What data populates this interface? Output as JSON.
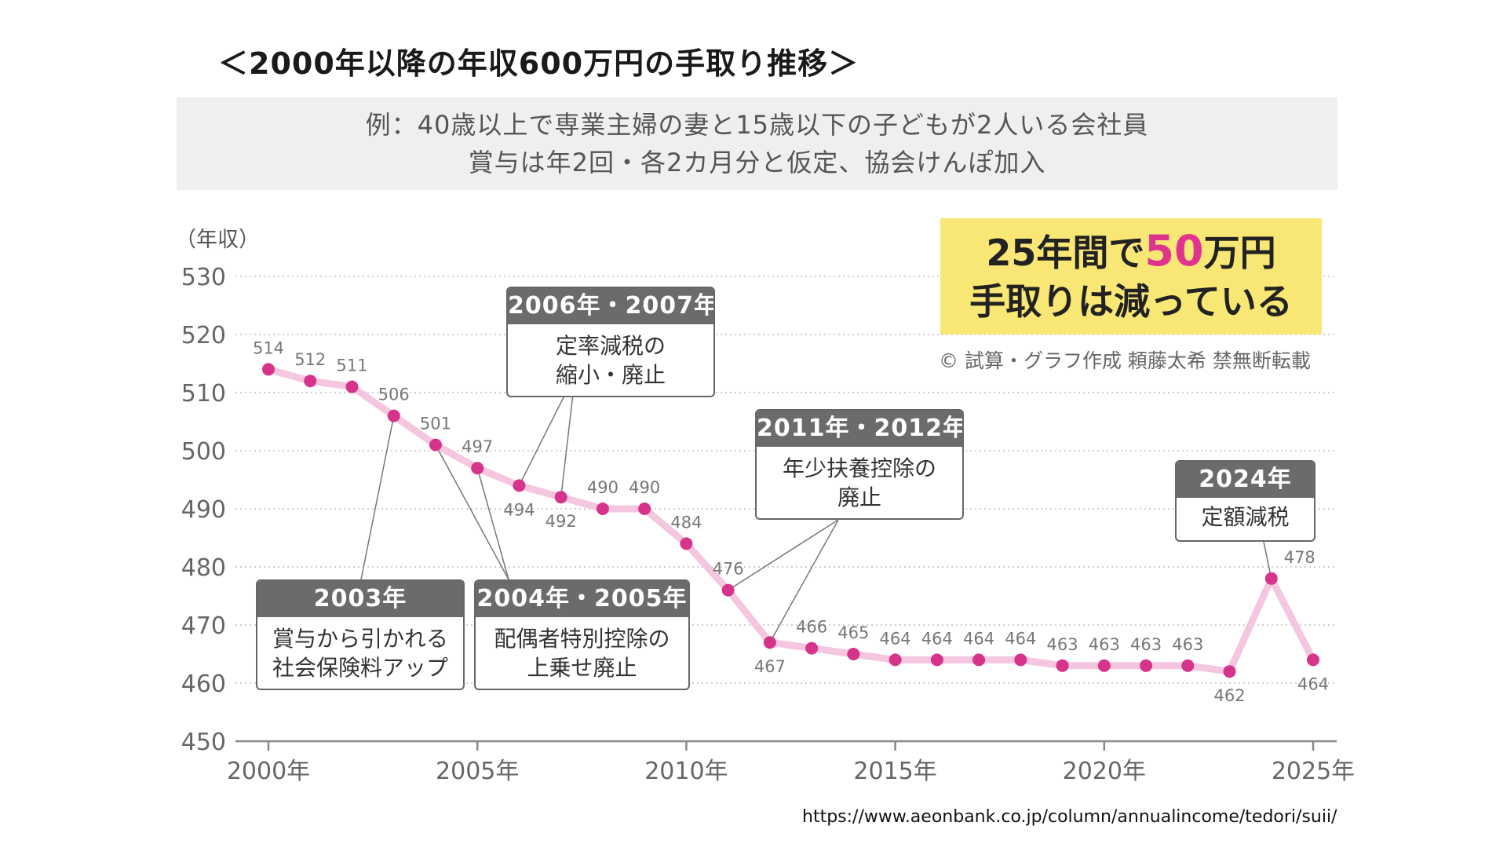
{
  "page_title": "＜2000年以降の年収600万円の手取り推移＞",
  "subtitle": {
    "line1": "例：40歳以上で専業主婦の妻と15歳以下の子どもが2人いる会社員",
    "line2": "賞与は年2回・各2カ月分と仮定、協会けんぽ加入"
  },
  "highlight": {
    "line1_prefix": "25年間で",
    "line1_number": "50",
    "line1_suffix": "万円",
    "line2": "手取りは減っている"
  },
  "credit": "© 試算・グラフ作成 頼藤太希 禁無断転載",
  "source_url": "https://www.aeonbank.co.jp/column/annualincome/tedori/suii/",
  "colors": {
    "line": "#f5c6df",
    "marker": "#d6338a",
    "highlight_bg": "#f9e775",
    "highlight_number": "#e0338f",
    "callout_header": "#6b6b6b"
  },
  "callouts": [
    {
      "id": "c2003",
      "header": "2003年",
      "lines": [
        "賞与から引かれる",
        "社会保険料アップ"
      ]
    },
    {
      "id": "c2004",
      "header": "2004年・2005年",
      "lines": [
        "配偶者特別控除の",
        "上乗せ廃止"
      ]
    },
    {
      "id": "c2006",
      "header": "2006年・2007年",
      "lines": [
        "定率減税の",
        "縮小・廃止"
      ]
    },
    {
      "id": "c2011",
      "header": "2011年・2012年",
      "lines": [
        "年少扶養控除の",
        "廃止"
      ]
    },
    {
      "id": "c2024",
      "header": "2024年",
      "lines": [
        "定額減税"
      ]
    }
  ],
  "chart_data": {
    "type": "line",
    "title": "＜2000年以降の年収600万円の手取り推移＞",
    "ylabel": "（年収）",
    "xlabel": "",
    "ylim": [
      450,
      530
    ],
    "yticks": [
      450,
      460,
      470,
      480,
      490,
      500,
      510,
      520,
      530
    ],
    "xticks": [
      {
        "value": 2000,
        "label": "2000年"
      },
      {
        "value": 2005,
        "label": "2005年"
      },
      {
        "value": 2010,
        "label": "2010年"
      },
      {
        "value": 2015,
        "label": "2015年"
      },
      {
        "value": 2020,
        "label": "2020年"
      },
      {
        "value": 2025,
        "label": "2025年"
      }
    ],
    "grid": true,
    "x": [
      2000,
      2001,
      2002,
      2003,
      2004,
      2005,
      2006,
      2007,
      2008,
      2009,
      2010,
      2011,
      2012,
      2013,
      2014,
      2015,
      2016,
      2017,
      2018,
      2019,
      2020,
      2021,
      2022,
      2023,
      2024,
      2025
    ],
    "values": [
      514,
      512,
      511,
      506,
      501,
      497,
      494,
      492,
      490,
      490,
      484,
      476,
      467,
      466,
      465,
      464,
      464,
      464,
      464,
      463,
      463,
      463,
      463,
      462,
      478,
      464
    ]
  }
}
